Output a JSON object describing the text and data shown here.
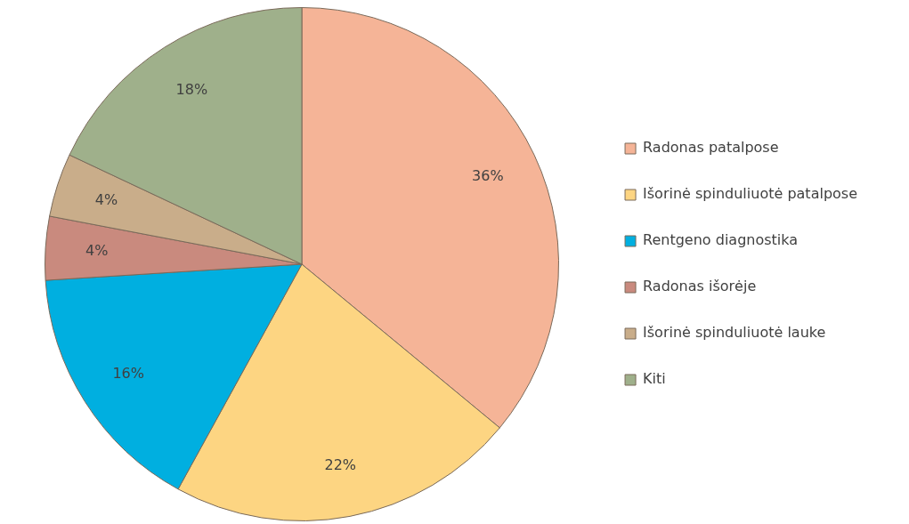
{
  "chart_data": {
    "type": "pie",
    "categories": [
      "Radonas patalpose",
      "Išorinė spinduliuotė patalpose",
      "Rentgeno diagnostika",
      "Radonas išorėje",
      "Išorinė spinduliuotė lauke",
      "Kiti"
    ],
    "values": [
      36,
      22,
      16,
      4,
      4,
      18
    ],
    "colors": [
      "#f5b497",
      "#fdd582",
      "#00afe0",
      "#c98a7e",
      "#c9ad8a",
      "#9fb08b"
    ],
    "value_labels": [
      "36%",
      "22%",
      "16%",
      "4%",
      "4%",
      "18%"
    ],
    "legend": "right"
  }
}
